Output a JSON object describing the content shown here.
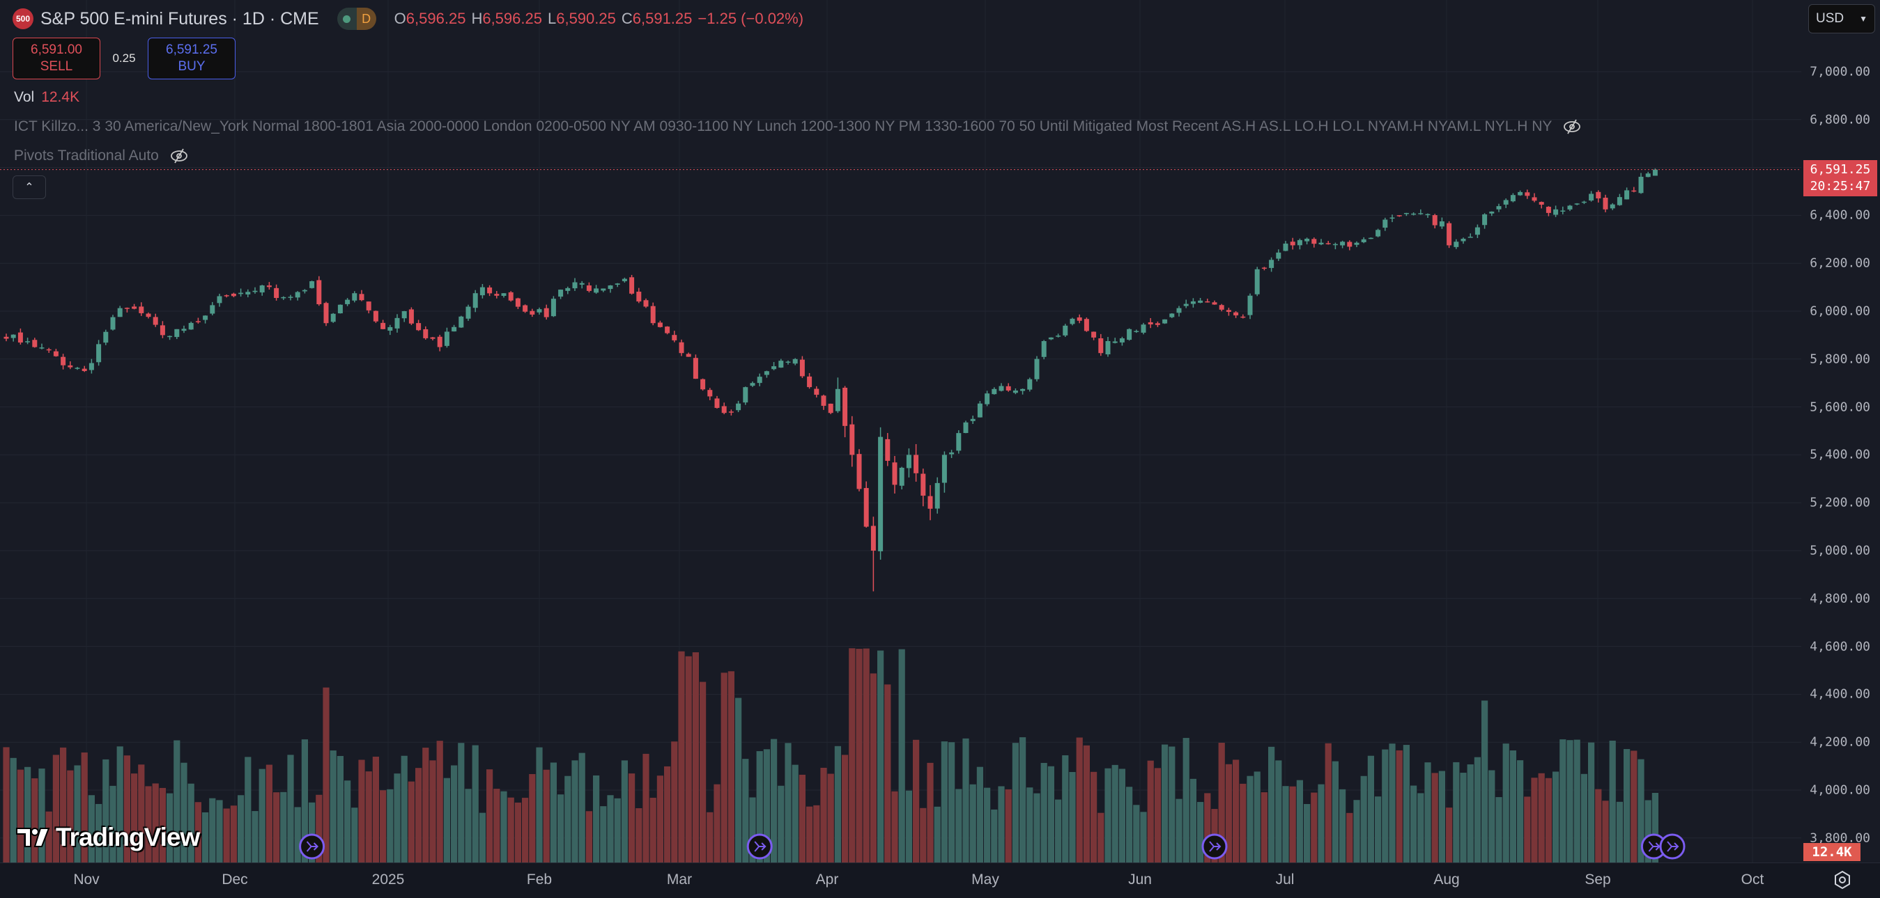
{
  "header": {
    "symbol_badge": "500",
    "title": "S&P 500 E-mini Futures · 1D · CME",
    "interval_badge": "D",
    "ohlc": {
      "o_label": "O",
      "o": "6,596.25",
      "h_label": "H",
      "h": "6,596.25",
      "l_label": "L",
      "l": "6,590.25",
      "c_label": "C",
      "c": "6,591.25",
      "change": "−1.25 (−0.02%)"
    }
  },
  "trade": {
    "sell_price": "6,591.00",
    "sell_label": "SELL",
    "spread": "0.25",
    "buy_price": "6,591.25",
    "buy_label": "BUY"
  },
  "volume_legend": {
    "label": "Vol",
    "value": "12.4K"
  },
  "indicators": [
    {
      "text": "ICT Killzo...  3 30 America/New_York Normal 1800-1801 Asia 2000-0000 London 0200-0500 NY AM 0930-1100 NY Lunch 1200-1300 NY PM 1330-1600 70 50 Until Mitigated Most Recent AS.H AS.L LO.H LO.L NYAM.H NYAM.L NYL.H NY"
    },
    {
      "text": "Pivots Traditional Auto"
    }
  ],
  "currency": "USD",
  "price_axis": {
    "labels": [
      "7,000.00",
      "6,800.00",
      "6,400.00",
      "6,200.00",
      "6,000.00",
      "5,800.00",
      "5,600.00",
      "5,400.00",
      "5,200.00",
      "5,000.00",
      "4,800.00",
      "4,600.00",
      "4,400.00",
      "4,200.00",
      "4,000.00",
      "3,800.00"
    ],
    "current_price": "6,591.25",
    "countdown": "20:25:47",
    "volume_tag": "12.4K"
  },
  "time_axis": {
    "labels": [
      "Nov",
      "Dec",
      "2025",
      "Feb",
      "Mar",
      "Apr",
      "May",
      "Jun",
      "Jul",
      "Aug",
      "Sep",
      "Oct"
    ]
  },
  "branding": "TradingView",
  "colors": {
    "up": "#4e9a8a",
    "down": "#e0505a",
    "vol_up": "#3a6461",
    "vol_down": "#7a3538",
    "bg": "#181b25",
    "event": "#7b5cf0"
  },
  "chart_data": {
    "type": "candlestick",
    "title": "S&P 500 E-mini Futures · 1D · CME",
    "ylim": [
      3800,
      7100
    ],
    "yticks": [
      7000,
      6800,
      6600,
      6400,
      6200,
      6000,
      5800,
      5600,
      5400,
      5200,
      5000,
      4800,
      4600,
      4400,
      4200,
      4000,
      3800
    ],
    "last": {
      "open": 6596.25,
      "high": 6596.25,
      "low": 6590.25,
      "close": 6591.25
    },
    "close_keypoints": [
      [
        0,
        5885
      ],
      [
        4,
        5850
      ],
      [
        11,
        5750
      ],
      [
        15,
        5975
      ],
      [
        18,
        6010
      ],
      [
        22,
        5900
      ],
      [
        24,
        5925
      ],
      [
        29,
        6025
      ],
      [
        35,
        6085
      ],
      [
        40,
        6060
      ],
      [
        43,
        6125
      ],
      [
        45,
        5950
      ],
      [
        49,
        6075
      ],
      [
        53,
        5925
      ],
      [
        56,
        6000
      ],
      [
        61,
        5850
      ],
      [
        67,
        6100
      ],
      [
        70,
        6075
      ],
      [
        76,
        5975
      ],
      [
        78,
        6090
      ],
      [
        87,
        6135
      ],
      [
        91,
        5950
      ],
      [
        95,
        5825
      ],
      [
        101,
        5575
      ],
      [
        105,
        5700
      ],
      [
        111,
        5800
      ],
      [
        116,
        5575
      ],
      [
        117,
        5675
      ],
      [
        119,
        5400
      ],
      [
        121,
        5100
      ],
      [
        122,
        5000
      ],
      [
        123,
        5475
      ],
      [
        125,
        5275
      ],
      [
        127,
        5400
      ],
      [
        130,
        5175
      ],
      [
        132,
        5400
      ],
      [
        136,
        5550
      ],
      [
        139,
        5675
      ],
      [
        143,
        5675
      ],
      [
        146,
        5875
      ],
      [
        151,
        5960
      ],
      [
        154,
        5825
      ],
      [
        158,
        5925
      ],
      [
        164,
        5990
      ],
      [
        169,
        6040
      ],
      [
        174,
        5975
      ],
      [
        176,
        6175
      ],
      [
        181,
        6275
      ],
      [
        188,
        6290
      ],
      [
        191,
        6300
      ],
      [
        197,
        6410
      ],
      [
        202,
        6375
      ],
      [
        203,
        6275
      ],
      [
        207,
        6350
      ],
      [
        212,
        6485
      ],
      [
        218,
        6425
      ],
      [
        223,
        6490
      ],
      [
        225,
        6425
      ],
      [
        229,
        6500
      ],
      [
        231,
        6575
      ],
      [
        232,
        6591.25
      ]
    ],
    "april_low": 4830,
    "event_markers_bars": [
      43,
      106,
      170,
      232,
      234
    ]
  }
}
